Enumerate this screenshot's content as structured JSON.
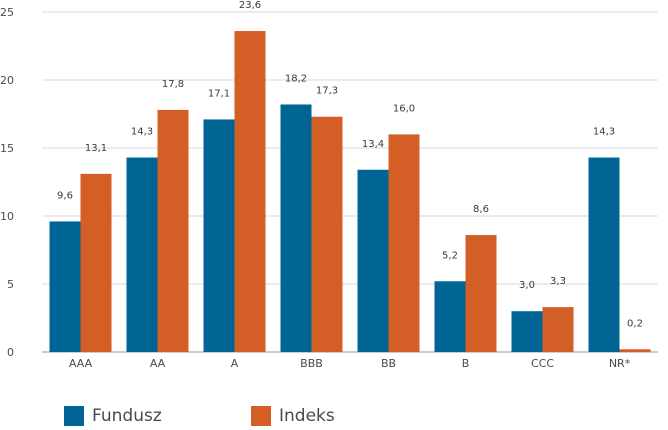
{
  "chart_data": {
    "type": "bar",
    "categories": [
      "AAA",
      "AA",
      "A",
      "BBB",
      "BB",
      "B",
      "CCC",
      "NR*"
    ],
    "series": [
      {
        "name": "Fundusz",
        "values": [
          9.6,
          14.3,
          17.1,
          18.2,
          13.4,
          5.2,
          3.0,
          14.3
        ],
        "labels": [
          "9,6",
          "14,3",
          "17,1",
          "18,2",
          "13,4",
          "5,2",
          "3,0",
          "14,3"
        ],
        "color": "#006494"
      },
      {
        "name": "Indeks",
        "values": [
          13.1,
          17.8,
          23.6,
          17.3,
          16.0,
          8.6,
          3.3,
          0.2
        ],
        "labels": [
          "13,1",
          "17,8",
          "23,6",
          "17,3",
          "16,0",
          "8,6",
          "3,3",
          "0,2"
        ],
        "color": "#d35f27"
      }
    ],
    "yticks": [
      0,
      5,
      10,
      15,
      20,
      25
    ],
    "ylim": [
      0,
      25
    ],
    "grid": true,
    "legend_position": "bottom-left"
  }
}
